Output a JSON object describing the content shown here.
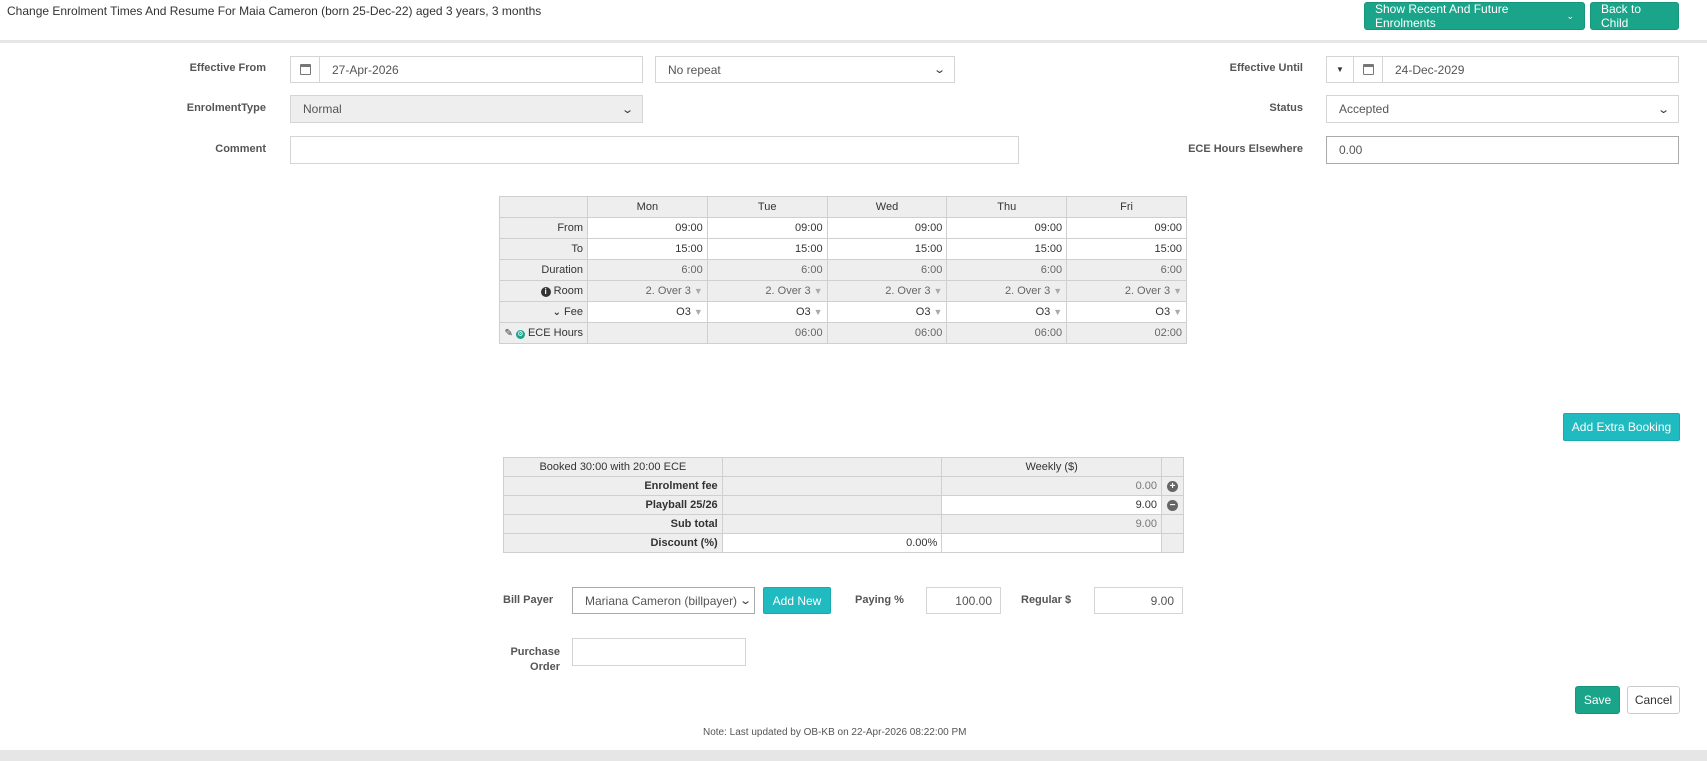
{
  "header": {
    "title": "Change Enrolment Times And Resume For Maia Cameron (born 25-Dec-22) aged 3 years, 3 months",
    "show_enrolments_label": "Show Recent And Future Enrolments",
    "back_label": "Back to Child"
  },
  "form": {
    "effective_from_label": "Effective From",
    "effective_from_value": "27-Apr-2026",
    "repeat_value": "No repeat",
    "effective_until_label": "Effective Until",
    "effective_until_value": "24-Dec-2029",
    "enrolment_type_label": "EnrolmentType",
    "enrolment_type_value": "Normal",
    "status_label": "Status",
    "status_value": "Accepted",
    "comment_label": "Comment",
    "comment_value": "",
    "ece_elsewhere_label": "ECE Hours Elsewhere",
    "ece_elsewhere_value": "0.00"
  },
  "schedule": {
    "days": [
      "Mon",
      "Tue",
      "Wed",
      "Thu",
      "Fri"
    ],
    "row_labels": {
      "from": "From",
      "to": "To",
      "duration": "Duration",
      "room": "Room",
      "fee": "Fee",
      "ece": "ECE Hours"
    },
    "from": [
      "09:00",
      "09:00",
      "09:00",
      "09:00",
      "09:00"
    ],
    "to": [
      "15:00",
      "15:00",
      "15:00",
      "15:00",
      "15:00"
    ],
    "duration": [
      "6:00",
      "6:00",
      "6:00",
      "6:00",
      "6:00"
    ],
    "room": [
      "2. Over 3",
      "2. Over 3",
      "2. Over 3",
      "2. Over 3",
      "2. Over 3"
    ],
    "fee": [
      "O3",
      "O3",
      "O3",
      "O3",
      "O3"
    ],
    "ece": [
      "",
      "06:00",
      "06:00",
      "06:00",
      "02:00"
    ]
  },
  "add_extra_booking_label": "Add Extra Booking",
  "fees": {
    "booked_summary": "Booked 30:00 with 20:00 ECE",
    "weekly_header": "Weekly ($)",
    "enrolment_fee_label": "Enrolment fee",
    "enrolment_fee_value": "0.00",
    "playball_label": "Playball 25/26",
    "playball_value": "9.00",
    "subtotal_label": "Sub total",
    "subtotal_value": "9.00",
    "discount_label": "Discount (%)",
    "discount_value": "0.00%"
  },
  "billing": {
    "bill_payer_label": "Bill Payer",
    "bill_payer_value": "Mariana Cameron (billpayer)",
    "add_new_label": "Add New",
    "paying_label": "Paying %",
    "paying_value": "100.00",
    "regular_label": "Regular $",
    "regular_value": "9.00",
    "po_label_1": "Purchase",
    "po_label_2": "Order",
    "po_value": ""
  },
  "actions": {
    "save_label": "Save",
    "cancel_label": "Cancel"
  },
  "note": "Note: Last updated by OB-KB on 22-Apr-2026 08:22:00 PM",
  "colors": {
    "primary": "#1aa489",
    "teal": "#1fbbc0"
  }
}
